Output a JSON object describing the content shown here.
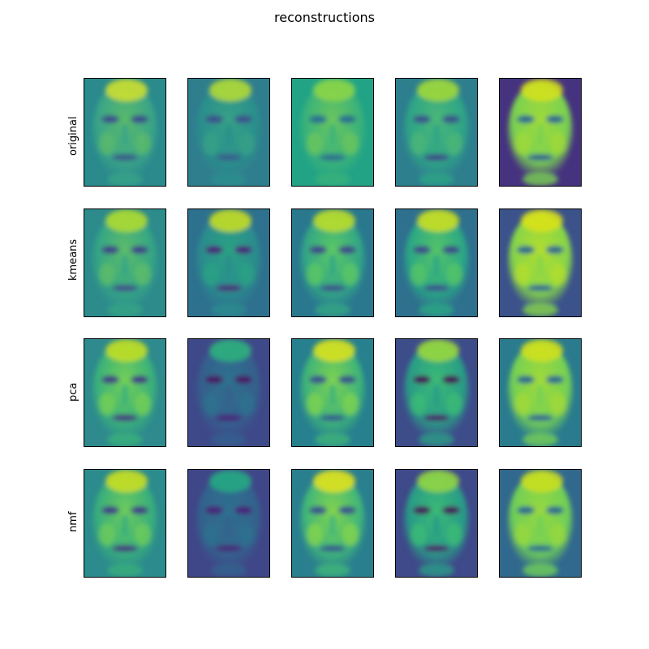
{
  "chart_data": {
    "type": "image-grid",
    "title": "reconstructions",
    "row_labels": [
      "original",
      "kmeans",
      "pca",
      "nmf"
    ],
    "columns": 5,
    "colormap": [
      "#440154",
      "#3b528b",
      "#21918c",
      "#5ec962",
      "#fde725"
    ],
    "panels": [
      [
        {
          "bg": "#2a8a8c",
          "face": "#3aa487",
          "eyes": "#3e4e8a",
          "mouth": "#3a5a8b",
          "skin": "#5aba6a",
          "highlight": "#d4e22a"
        },
        {
          "bg": "#2f7e8e",
          "face": "#2a8f8c",
          "eyes": "#3b538b",
          "mouth": "#385e8c",
          "skin": "#37a186",
          "highlight": "#b8de30"
        },
        {
          "bg": "#22a385",
          "face": "#3ab27a",
          "eyes": "#2c6f8e",
          "mouth": "#2e6d8e",
          "skin": "#6cc65c",
          "highlight": "#8fd744"
        },
        {
          "bg": "#2d7f8e",
          "face": "#2da486",
          "eyes": "#3b528b",
          "mouth": "#3d4a89",
          "skin": "#4cb777",
          "highlight": "#a6db36"
        },
        {
          "bg": "#46337f",
          "face": "#7ad151",
          "eyes": "#2f6c8e",
          "mouth": "#35608d",
          "skin": "#a0da39",
          "highlight": "#d8e219"
        }
      ],
      [
        {
          "bg": "#2d8b8b",
          "face": "#34a585",
          "eyes": "#404387",
          "mouth": "#3f508a",
          "skin": "#5ebd68",
          "highlight": "#b5de2b"
        },
        {
          "bg": "#2d718e",
          "face": "#2c8c8d",
          "eyes": "#46287a",
          "mouth": "#472d7b",
          "skin": "#2aa283",
          "highlight": "#cce11e"
        },
        {
          "bg": "#2a788e",
          "face": "#32a685",
          "eyes": "#404688",
          "mouth": "#3b528b",
          "skin": "#5dc863",
          "highlight": "#c2df23"
        },
        {
          "bg": "#2e708e",
          "face": "#2ba785",
          "eyes": "#3e4c8a",
          "mouth": "#3b528b",
          "skin": "#56c566",
          "highlight": "#d2e21b"
        },
        {
          "bg": "#3b528b",
          "face": "#86d549",
          "eyes": "#2f6b8e",
          "mouth": "#30698e",
          "skin": "#b2dd2d",
          "highlight": "#dde318"
        }
      ],
      [
        {
          "bg": "#2e8a8c",
          "face": "#3ab17a",
          "eyes": "#443a83",
          "mouth": "#46307e",
          "skin": "#76d054",
          "highlight": "#c8e020"
        },
        {
          "bg": "#3e4989",
          "face": "#35608d",
          "eyes": "#471365",
          "mouth": "#46247a",
          "skin": "#2c728e",
          "highlight": "#2fb47c"
        },
        {
          "bg": "#27808e",
          "face": "#3eb379",
          "eyes": "#3b528b",
          "mouth": "#355f8d",
          "skin": "#7ed34f",
          "highlight": "#e0e419"
        },
        {
          "bg": "#3d4d8a",
          "face": "#2a9c86",
          "eyes": "#450559",
          "mouth": "#481a6c",
          "skin": "#3bbb75",
          "highlight": "#9fda3a"
        },
        {
          "bg": "#2a7b8e",
          "face": "#75d054",
          "eyes": "#2f6c8e",
          "mouth": "#31678e",
          "skin": "#a2da37",
          "highlight": "#d5e21a"
        }
      ],
      [
        {
          "bg": "#2c8b8c",
          "face": "#38ae7c",
          "eyes": "#433e85",
          "mouth": "#45337f",
          "skin": "#6ecc5a",
          "highlight": "#d0e11c"
        },
        {
          "bg": "#3f4788",
          "face": "#33638d",
          "eyes": "#46227a",
          "mouth": "#472a7a",
          "skin": "#2d708e",
          "highlight": "#25ac82"
        },
        {
          "bg": "#2a7f8e",
          "face": "#40b679",
          "eyes": "#3b528b",
          "mouth": "#38598c",
          "skin": "#84d44b",
          "highlight": "#e8e419"
        },
        {
          "bg": "#3e4a89",
          "face": "#299b87",
          "eyes": "#450a5c",
          "mouth": "#481b6d",
          "skin": "#3bbb75",
          "highlight": "#98d83e"
        },
        {
          "bg": "#31688e",
          "face": "#70cf57",
          "eyes": "#2f6c8e",
          "mouth": "#2e6e8e",
          "skin": "#98d83e",
          "highlight": "#cfe11c"
        }
      ]
    ]
  }
}
